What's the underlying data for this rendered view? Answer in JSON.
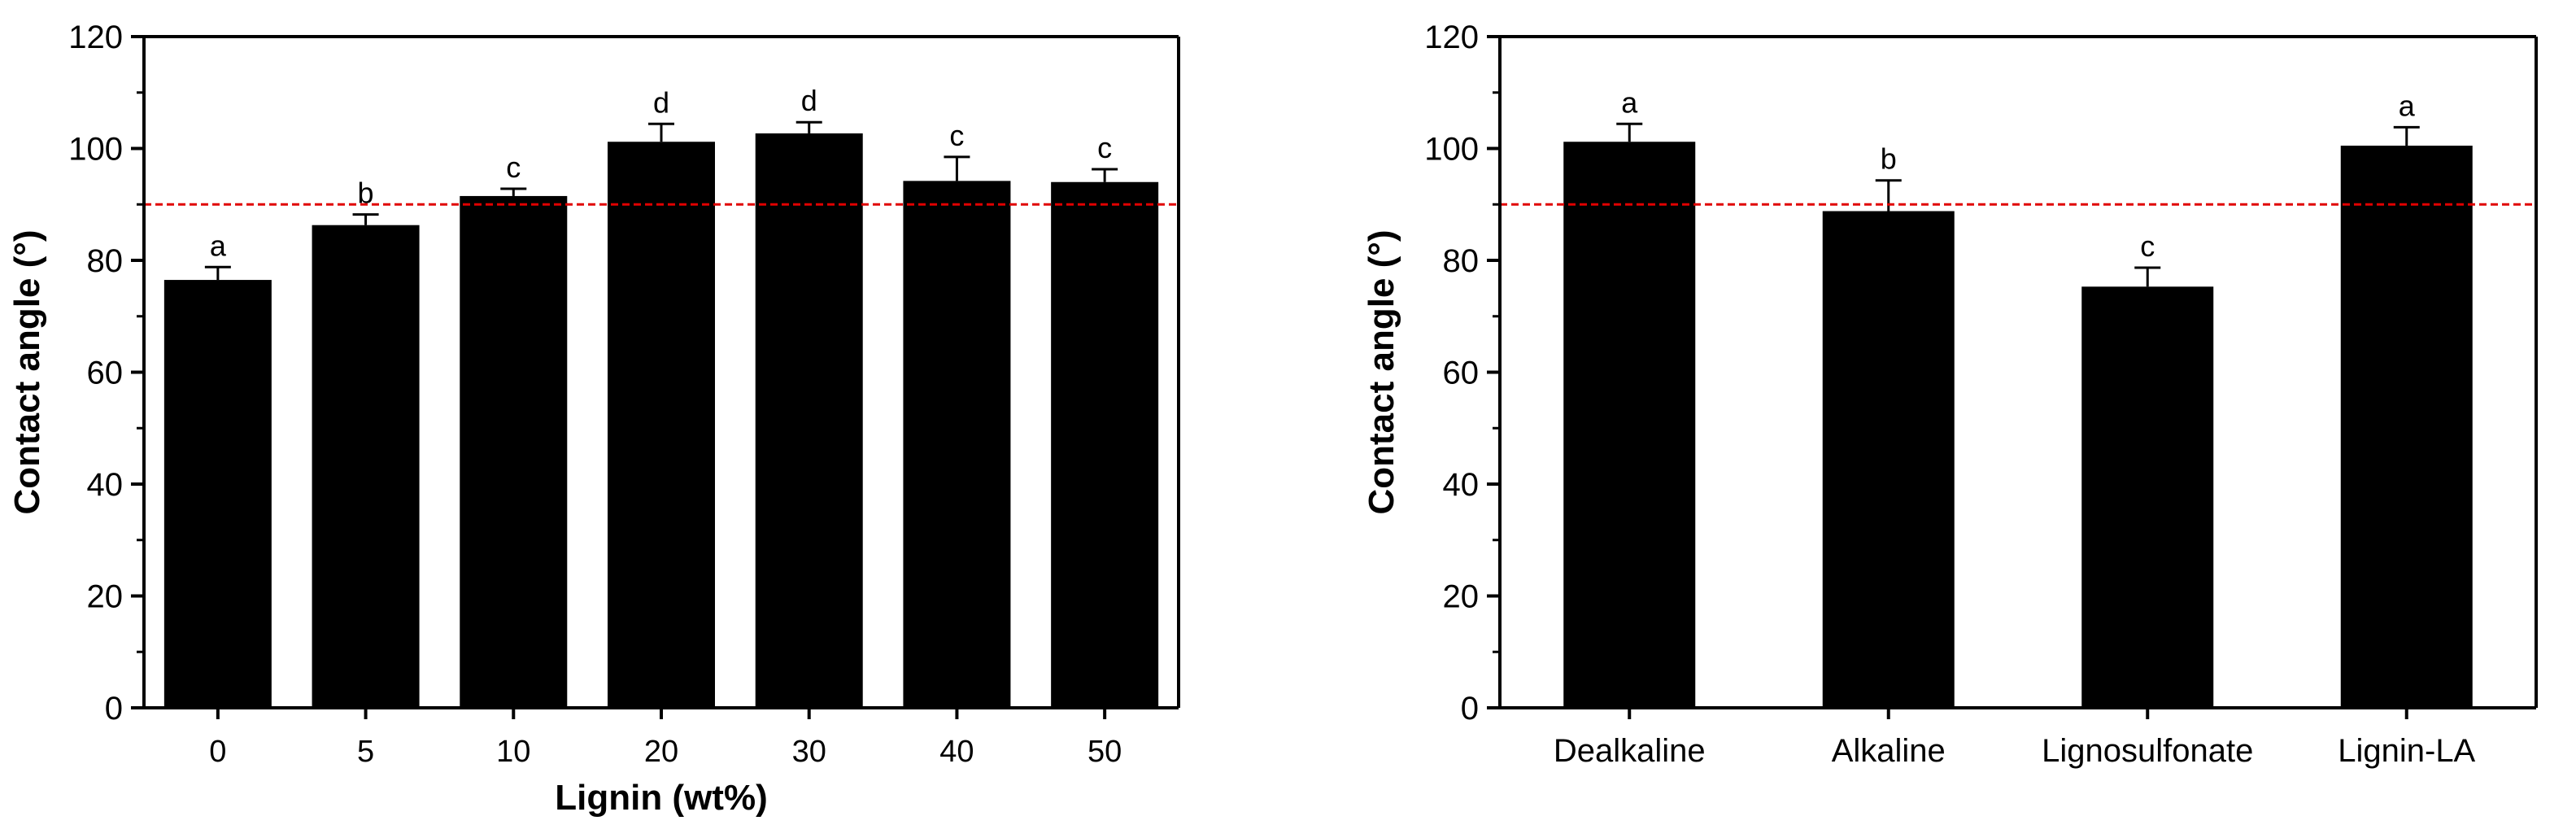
{
  "chart_data": [
    {
      "type": "bar",
      "title": "",
      "xlabel": "Lignin  (wt%)",
      "ylabel": "Contact angle (°)",
      "categories": [
        "0",
        "5",
        "10",
        "20",
        "30",
        "40",
        "50"
      ],
      "values": [
        76.5,
        86.3,
        91.5,
        101.2,
        102.7,
        94.2,
        94.0
      ],
      "errors": [
        2.3,
        1.9,
        1.3,
        3.2,
        2.0,
        4.3,
        2.3
      ],
      "significance_letters": [
        "a",
        "b",
        "c",
        "d",
        "d",
        "c",
        "c"
      ],
      "ylim": [
        0,
        120
      ],
      "yticks": [
        0,
        20,
        40,
        60,
        80,
        100,
        120
      ],
      "reference_line": {
        "value": 90,
        "style": "dashed",
        "color": "#e00000"
      },
      "bar_color": "#000000",
      "grid": false
    },
    {
      "type": "bar",
      "title": "",
      "xlabel": "",
      "ylabel": "Contact angle (°)",
      "categories": [
        "Dealkaline",
        "Alkaline",
        "Lignosulfonate",
        "Lignin-LA"
      ],
      "values": [
        101.2,
        88.8,
        75.3,
        100.5
      ],
      "errors": [
        3.2,
        5.5,
        3.4,
        3.3
      ],
      "significance_letters": [
        "a",
        "b",
        "c",
        "a"
      ],
      "ylim": [
        0,
        120
      ],
      "yticks": [
        0,
        20,
        40,
        60,
        80,
        100,
        120
      ],
      "reference_line": {
        "value": 90,
        "style": "dashed",
        "color": "#e00000"
      },
      "bar_color": "#000000",
      "grid": false
    }
  ]
}
